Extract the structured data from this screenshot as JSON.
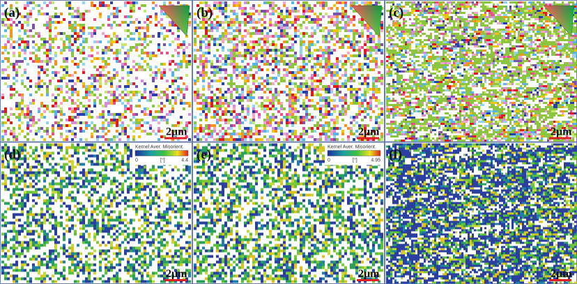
{
  "panels": [
    {
      "label": "(a)",
      "scale_bar": "2μm"
    },
    {
      "label": "(b)",
      "scale_bar": "2μm"
    },
    {
      "label": "(c)",
      "scale_bar": "2μm"
    },
    {
      "label": "(d)",
      "scale_bar": "2μm",
      "legend": {
        "title": "Kernel Aver. Misorient.",
        "unit": "[°]",
        "min": "0",
        "max": "4.4"
      }
    },
    {
      "label": "(e)",
      "scale_bar": "2μm",
      "legend": {
        "title": "Kernel Aver. Misorient.",
        "unit": "[°]",
        "min": "0",
        "max": "4.95"
      }
    },
    {
      "label": "(f)",
      "scale_bar": "2μm"
    }
  ]
}
